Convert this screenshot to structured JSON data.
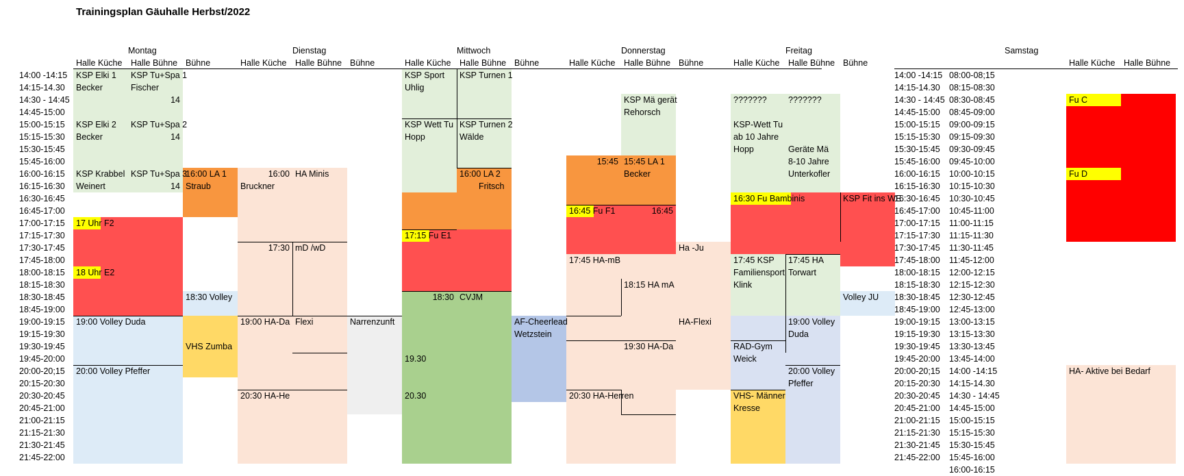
{
  "title": "Trainingsplan Gäuhalle Herbst/2022",
  "colors": {
    "light_green": "#e2efda",
    "orange": "#f8963f",
    "red_block": "#ff5050",
    "red_saturday": "#ff0000",
    "yellow": "#ffff00",
    "peach": "#fce4d6",
    "light_blue": "#ddebf7",
    "gold": "#ffd966",
    "green": "#a9d08e",
    "blue": "#b4c6e7",
    "lavender": "#d9e1f2",
    "grey": "#efefef"
  },
  "days": [
    "Montag",
    "Dienstag",
    "Mittwoch",
    "Donnerstag",
    "Freitag",
    "Samstag"
  ],
  "column_headers": [
    "Halle Küche",
    "Halle Bühne",
    "Bühne",
    "Halle Küche",
    "Halle Bühne",
    "Bühne",
    "Halle Küche",
    "Halle Bühne",
    "Bühne",
    "Halle Küche",
    "Halle Bühne",
    "Bühne",
    "Halle Küche",
    "Halle Bühne",
    "Bühne",
    "Halle Küche",
    "Halle Bühne"
  ],
  "times": [
    "14:00 -14:15",
    "14:15-14.30",
    "14:30 - 14:45",
    "14:45-15:00",
    "15:00-15:15",
    "15:15-15:30",
    "15:30-15:45",
    "15:45-16:00",
    "16:00-16:15",
    "16:15-16:30",
    "16:30-16:45",
    "16:45-17:00",
    "17:00-17:15",
    "17:15-17:30",
    "17:30-17:45",
    "17:45-18:00",
    "18:00-18:15",
    "18:15-18:30",
    "18:30-18:45",
    "18:45-19:00",
    "19:00-19:15",
    "19:15-19:30",
    "19:30-19:45",
    "19:45-20:00",
    "20:00-20;15",
    "20:15-20:30",
    "20:30-20:45",
    "20:45-21:00",
    "21:00-21:15",
    "21:15-21:30",
    "21:30-21:45",
    "21:45-22:00"
  ],
  "times_right": [
    "14:00 -14:15",
    "14:15-14.30",
    "14:30 - 14:45",
    "14:45-15:00",
    "15:00-15:15",
    "15:15-15:30",
    "15:30-15:45",
    "15:45-16:00",
    "16:00-16:15",
    "16:15-16:30",
    "16:30-16:45",
    "16:45-17:00",
    "17:00-17:15",
    "17:15-17:30",
    "17:30-17:45",
    "17:45-18:00",
    "18:00-18:15",
    "18:15-18:30",
    "18:30-18:45",
    "18:45-19:00",
    "19:00-19:15",
    "19:15-19:30",
    "19:30-19:45",
    "19:45-20:00",
    "20:00-20;15",
    "20:15-20:30",
    "20:30-20:45",
    "20:45-21:00",
    "21:00-21:15",
    "21:15-21:30",
    "21:30-21:45",
    "21:45-22:00"
  ],
  "times_saturday": [
    "08:00-08;15",
    "08:15-08:30",
    "08:30-08:45",
    "08:45-09:00",
    "09:00-09:15",
    "09:15-09:30",
    "09:30-09:45",
    "09:45-10:00",
    "10:00-10:15",
    "10:15-10:30",
    "10:30-10:45",
    "10:45-11:00",
    "11:00-11:15",
    "11:15-11:30",
    "11:30-11:45",
    "11:45-12:00",
    "12:00-12:15",
    "12:15-12:30",
    "12:30-12:45",
    "12:45-13:00",
    "13:00-13:15",
    "13:15-13:30",
    "13:30-13:45",
    "13:45-14:00",
    "14:00 -14:15",
    "14:15-14.30",
    "14:30 - 14:45",
    "14:45-15:00",
    "15:00-15:15",
    "15:15-15:30",
    "15:30-15:45",
    "15:45-16:00",
    "16:00-16:15"
  ],
  "blocks": [
    {
      "col": 0,
      "start": 0,
      "end": 10,
      "color": "light_green"
    },
    {
      "col": 1,
      "start": 0,
      "end": 10,
      "color": "light_green"
    },
    {
      "col": 2,
      "start": 8,
      "end": 12,
      "color": "orange"
    },
    {
      "col": 0,
      "start": 12,
      "end": 20,
      "color": "red_block"
    },
    {
      "col": 0,
      "start": 12,
      "end": 13,
      "color": "yellow",
      "span": 0.5
    },
    {
      "col": 0,
      "start": 16,
      "end": 17,
      "color": "yellow",
      "span": 0.5
    },
    {
      "col": 1,
      "start": 12,
      "end": 20,
      "color": "red_block"
    },
    {
      "col": 2,
      "start": 18,
      "end": 20,
      "color": "light_blue"
    },
    {
      "col": 0,
      "start": 20,
      "end": 32,
      "color": "light_blue"
    },
    {
      "col": 1,
      "start": 20,
      "end": 32,
      "color": "light_blue"
    },
    {
      "col": 2,
      "start": 20,
      "end": 25,
      "color": "gold"
    },
    {
      "col": 3,
      "start": 8,
      "end": 32,
      "color": "peach"
    },
    {
      "col": 4,
      "start": 8,
      "end": 32,
      "color": "peach"
    },
    {
      "col": 5,
      "start": 20,
      "end": 28,
      "color": "grey"
    },
    {
      "col": 6,
      "start": 0,
      "end": 10,
      "color": "light_green"
    },
    {
      "col": 7,
      "start": 0,
      "end": 8,
      "color": "light_green"
    },
    {
      "col": 7,
      "start": 8,
      "end": 10,
      "color": "orange"
    },
    {
      "col": 6,
      "start": 10,
      "end": 13,
      "color": "orange"
    },
    {
      "col": 7,
      "start": 10,
      "end": 13,
      "color": "orange"
    },
    {
      "col": 6,
      "start": 13,
      "end": 14,
      "color": "yellow",
      "span": 0.5
    },
    {
      "col": 6,
      "start": 13,
      "end": 18,
      "color": "red_block"
    },
    {
      "col": 6,
      "start": 13,
      "end": 14,
      "color": "yellow",
      "span": 0.5
    },
    {
      "col": 7,
      "start": 13,
      "end": 18,
      "color": "red_block"
    },
    {
      "col": 6,
      "start": 18,
      "end": 32,
      "color": "green"
    },
    {
      "col": 7,
      "start": 18,
      "end": 32,
      "color": "green"
    },
    {
      "col": 8,
      "start": 20,
      "end": 27,
      "color": "blue"
    },
    {
      "col": 10,
      "start": 2,
      "end": 7,
      "color": "light_green"
    },
    {
      "col": 9,
      "start": 7,
      "end": 11,
      "color": "orange"
    },
    {
      "col": 10,
      "start": 7,
      "end": 11,
      "color": "orange"
    },
    {
      "col": 9,
      "start": 11,
      "end": 15,
      "color": "red_block"
    },
    {
      "col": 10,
      "start": 11,
      "end": 15,
      "color": "red_block"
    },
    {
      "col": 9,
      "start": 11,
      "end": 12,
      "color": "yellow",
      "span": 0.5
    },
    {
      "col": 9,
      "start": 15,
      "end": 32,
      "color": "peach"
    },
    {
      "col": 10,
      "start": 15,
      "end": 32,
      "color": "peach"
    },
    {
      "col": 11,
      "start": 14,
      "end": 26,
      "color": "peach"
    },
    {
      "col": 12,
      "start": 2,
      "end": 10,
      "color": "light_green"
    },
    {
      "col": 13,
      "start": 2,
      "end": 10,
      "color": "light_green"
    },
    {
      "col": 12,
      "start": 10,
      "end": 15,
      "color": "red_block"
    },
    {
      "col": 13,
      "start": 10,
      "end": 15,
      "color": "red_block"
    },
    {
      "col": 14,
      "start": 10,
      "end": 16,
      "color": "red_block"
    },
    {
      "col": 12,
      "start": 10,
      "end": 11,
      "color": "yellow"
    },
    {
      "col": 13,
      "start": 10,
      "end": 11,
      "color": "yellow",
      "span": 0.1
    },
    {
      "col": 12,
      "start": 15,
      "end": 20,
      "color": "light_green"
    },
    {
      "col": 13,
      "start": 15,
      "end": 20,
      "color": "light_green"
    },
    {
      "col": 14,
      "start": 18,
      "end": 20,
      "color": "light_blue"
    },
    {
      "col": 12,
      "start": 20,
      "end": 26,
      "color": "lavender"
    },
    {
      "col": 13,
      "start": 20,
      "end": 32,
      "color": "lavender"
    },
    {
      "col": 12,
      "start": 26,
      "end": 32,
      "color": "gold"
    },
    {
      "col": 15,
      "start": 2,
      "end": 14,
      "color": "red_saturday"
    },
    {
      "col": 16,
      "start": 2,
      "end": 14,
      "color": "red_saturday"
    },
    {
      "col": 15,
      "start": 2,
      "end": 3,
      "color": "yellow"
    },
    {
      "col": 15,
      "start": 8,
      "end": 9,
      "color": "yellow"
    },
    {
      "col": 15,
      "start": 24,
      "end": 32,
      "color": "peach"
    },
    {
      "col": 16,
      "start": 24,
      "end": 32,
      "color": "peach"
    }
  ],
  "labels": [
    {
      "col": 0,
      "row": 0,
      "text": "KSP Elki 1"
    },
    {
      "col": 0,
      "row": 1,
      "text": "Becker"
    },
    {
      "col": 1,
      "row": 0,
      "text": "KSP Tu+Spa 1"
    },
    {
      "col": 1,
      "row": 1,
      "text": "Fischer"
    },
    {
      "col": 1,
      "row": 2,
      "text": "14",
      "align": "right"
    },
    {
      "col": 0,
      "row": 4,
      "text": "KSP Elki 2"
    },
    {
      "col": 0,
      "row": 5,
      "text": "Becker"
    },
    {
      "col": 1,
      "row": 4,
      "text": "KSP Tu+Spa 2"
    },
    {
      "col": 1,
      "row": 5,
      "text": "14",
      "align": "right"
    },
    {
      "col": 0,
      "row": 8,
      "text": "KSP Krabbel"
    },
    {
      "col": 0,
      "row": 9,
      "text": "Weinert"
    },
    {
      "col": 1,
      "row": 8,
      "text": "KSP Tu+Spa 3"
    },
    {
      "col": 1,
      "row": 9,
      "text": "14",
      "align": "right"
    },
    {
      "col": 2,
      "row": 8,
      "text": "16:00 LA 1"
    },
    {
      "col": 2,
      "row": 9,
      "text": "Straub"
    },
    {
      "col": 3,
      "row": 8,
      "text": "16:00",
      "align": "right"
    },
    {
      "col": 4,
      "row": 8,
      "text": "HA Minis"
    },
    {
      "col": 3,
      "row": 9,
      "text": "Bruckner"
    },
    {
      "col": 0,
      "row": 12,
      "text": "17 Uhr F2"
    },
    {
      "col": 0,
      "row": 16,
      "text": "18 Uhr E2"
    },
    {
      "col": 2,
      "row": 18,
      "text": "18:30 Volley"
    },
    {
      "col": 0,
      "row": 20,
      "text": "19:00 Volley Duda"
    },
    {
      "col": 2,
      "row": 22,
      "text": "VHS Zumba"
    },
    {
      "col": 0,
      "row": 24,
      "text": "20:00 Volley Pfeffer"
    },
    {
      "col": 3,
      "row": 14,
      "text": "17:30",
      "align": "right"
    },
    {
      "col": 4,
      "row": 14,
      "text": "mD /wD"
    },
    {
      "col": 3,
      "row": 20,
      "text": "19:00 HA-Da"
    },
    {
      "col": 4,
      "row": 20,
      "text": "Flexi"
    },
    {
      "col": 5,
      "row": 20,
      "text": "Narrenzunft"
    },
    {
      "col": 3,
      "row": 26,
      "text": "20:30 HA-He"
    },
    {
      "col": 6,
      "row": 0,
      "text": "KSP Sport"
    },
    {
      "col": 6,
      "row": 1,
      "text": "Uhlig"
    },
    {
      "col": 7,
      "row": 0,
      "text": "KSP Turnen 1"
    },
    {
      "col": 6,
      "row": 4,
      "text": "KSP Wett Tu"
    },
    {
      "col": 6,
      "row": 5,
      "text": "Hopp"
    },
    {
      "col": 7,
      "row": 4,
      "text": "KSP Turnen 2"
    },
    {
      "col": 7,
      "row": 5,
      "text": "Wälde"
    },
    {
      "col": 7,
      "row": 8,
      "text": "16:00 LA 2"
    },
    {
      "col": 7,
      "row": 9,
      "text": "Fritsch",
      "indent": 28
    },
    {
      "col": 6,
      "row": 13,
      "text": "17:15 Fu E1"
    },
    {
      "col": 6,
      "row": 18,
      "text": "18:30",
      "align": "right"
    },
    {
      "col": 7,
      "row": 18,
      "text": "CVJM"
    },
    {
      "col": 8,
      "row": 20,
      "text": "AF-Cheerlead"
    },
    {
      "col": 8,
      "row": 21,
      "text": "Wetzstein"
    },
    {
      "col": 6,
      "row": 23,
      "text": "19.30"
    },
    {
      "col": 6,
      "row": 26,
      "text": "20.30"
    },
    {
      "col": 10,
      "row": 2,
      "text": "KSP Mä gerät"
    },
    {
      "col": 10,
      "row": 3,
      "text": "Rehorsch"
    },
    {
      "col": 9,
      "row": 7,
      "text": "15:45",
      "align": "right"
    },
    {
      "col": 10,
      "row": 7,
      "text": "15:45 LA 1"
    },
    {
      "col": 10,
      "row": 8,
      "text": "Becker"
    },
    {
      "col": 9,
      "row": 11,
      "text": "16:45 Fu F1"
    },
    {
      "col": 10,
      "row": 11,
      "text": "16:45",
      "align": "right"
    },
    {
      "col": 11,
      "row": 14,
      "text": "Ha -Ju"
    },
    {
      "col": 9,
      "row": 15,
      "text": "17:45 HA-mB"
    },
    {
      "col": 10,
      "row": 17,
      "text": "18:15 HA mA"
    },
    {
      "col": 11,
      "row": 20,
      "text": "HA-Flexi"
    },
    {
      "col": 10,
      "row": 22,
      "text": "19:30 HA-Da"
    },
    {
      "col": 9,
      "row": 26,
      "text": "20:30 HA-Herren"
    },
    {
      "col": 12,
      "row": 2,
      "text": "???????"
    },
    {
      "col": 13,
      "row": 2,
      "text": "???????"
    },
    {
      "col": 12,
      "row": 4,
      "text": "KSP-Wett Tu"
    },
    {
      "col": 12,
      "row": 5,
      "text": "ab 10 Jahre"
    },
    {
      "col": 12,
      "row": 6,
      "text": "Hopp"
    },
    {
      "col": 13,
      "row": 6,
      "text": "Geräte Mä"
    },
    {
      "col": 13,
      "row": 7,
      "text": "8-10 Jahre"
    },
    {
      "col": 13,
      "row": 8,
      "text": "Unterkofler"
    },
    {
      "col": 12,
      "row": 10,
      "text": "16:30 Fu Bambinis"
    },
    {
      "col": 14,
      "row": 10,
      "text": "KSP Fit ins WE"
    },
    {
      "col": 12,
      "row": 15,
      "text": "17:45 KSP"
    },
    {
      "col": 12,
      "row": 16,
      "text": "Familiensport"
    },
    {
      "col": 12,
      "row": 17,
      "text": "Klink"
    },
    {
      "col": 13,
      "row": 15,
      "text": "17:45 HA"
    },
    {
      "col": 13,
      "row": 16,
      "text": "Torwart"
    },
    {
      "col": 14,
      "row": 18,
      "text": "Volley JU"
    },
    {
      "col": 13,
      "row": 20,
      "text": "19:00 Volley"
    },
    {
      "col": 13,
      "row": 21,
      "text": "Duda"
    },
    {
      "col": 12,
      "row": 22,
      "text": "RAD-Gym"
    },
    {
      "col": 12,
      "row": 23,
      "text": "Weick"
    },
    {
      "col": 13,
      "row": 24,
      "text": "20:00 Volley"
    },
    {
      "col": 13,
      "row": 25,
      "text": "Pfeffer"
    },
    {
      "col": 12,
      "row": 26,
      "text": "VHS- Männer"
    },
    {
      "col": 12,
      "row": 27,
      "text": "Kresse"
    },
    {
      "col": 15,
      "row": 2,
      "text": "Fu C"
    },
    {
      "col": 15,
      "row": 8,
      "text": "Fu D"
    },
    {
      "col": 15,
      "row": 24,
      "text": "HA- Aktive bei Bedarf"
    }
  ]
}
